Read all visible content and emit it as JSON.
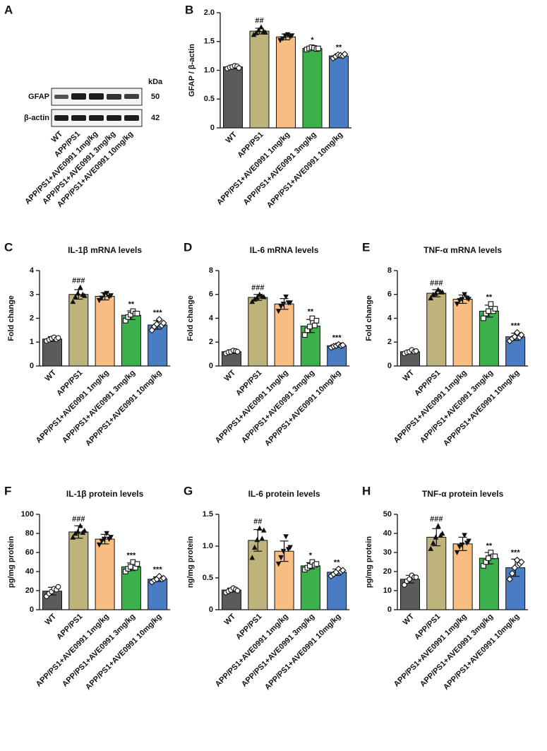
{
  "figure_a": {
    "panel": "A",
    "unit": "kDa",
    "bands": [
      {
        "name": "GFAP",
        "kda": 50
      },
      {
        "name": "β-actin",
        "kda": 42
      }
    ],
    "lanes": [
      "WT",
      "APP/PS1",
      "APP/PS1+AVE0991 1mg/kg",
      "APP/PS1+AVE0991 3mg/kg",
      "APP/PS1+AVE0991 10mg/kg"
    ]
  },
  "chart_data": [
    {
      "type": "bar",
      "panel": "B",
      "ylabel": "GFAP / β-actin",
      "categories": [
        "WT",
        "APP/PS1",
        "APP/PS1+AVE0991 1mg/kg",
        "APP/PS1+AVE0991 3mg/kg",
        "APP/PS1+AVE0991 10mg/kg"
      ],
      "colors": [
        "#5b5b5b",
        "#bfb37c",
        "#f8bd80",
        "#3cb04a",
        "#4a7cc3"
      ],
      "values": [
        1.06,
        1.68,
        1.58,
        1.38,
        1.25
      ],
      "errors": [
        0.03,
        0.05,
        0.05,
        0.03,
        0.03
      ],
      "annotations": [
        null,
        "##",
        null,
        "*",
        "**"
      ],
      "points": [
        [
          1.03,
          1.05,
          1.06,
          1.08,
          1.07,
          1.04
        ],
        [
          1.62,
          1.65,
          1.7,
          1.75,
          1.68,
          1.66
        ],
        [
          1.52,
          1.55,
          1.6,
          1.62,
          1.58,
          1.6
        ],
        [
          1.36,
          1.38,
          1.4,
          1.39,
          1.37,
          1.38
        ],
        [
          1.21,
          1.24,
          1.27,
          1.26,
          1.25,
          1.28
        ]
      ],
      "ylim": [
        0,
        2
      ],
      "yticks": [
        0,
        0.5,
        {
          "value": 1,
          "label": "1.0"
        },
        1.5,
        {
          "value": 2,
          "label": "2.0"
        }
      ]
    },
    {
      "type": "bar",
      "panel": "C",
      "title": "IL-1β mRNA levels",
      "ylabel": "Fold change",
      "categories": [
        "WT",
        "APP/PS1",
        "APP/PS1+AVE0991 1mg/kg",
        "APP/PS1+AVE0991 3mg/kg",
        "APP/PS1+AVE0991 10mg/kg"
      ],
      "colors": [
        "#5b5b5b",
        "#bfb37c",
        "#f8bd80",
        "#3cb04a",
        "#4a7cc3"
      ],
      "values": [
        1.13,
        3.0,
        2.92,
        2.13,
        1.72
      ],
      "errors": [
        0.1,
        0.2,
        0.15,
        0.18,
        0.18
      ],
      "annotations": [
        null,
        "###",
        null,
        "**",
        "***"
      ],
      "points": [
        [
          1.05,
          1.1,
          1.15,
          1.2,
          1.12,
          1.18
        ],
        [
          2.7,
          2.9,
          3.05,
          3.3,
          3.0,
          2.95
        ],
        [
          2.75,
          2.85,
          3.0,
          3.05,
          2.9,
          2.95
        ],
        [
          1.9,
          2.05,
          2.15,
          2.3,
          2.2,
          2.2
        ],
        [
          1.5,
          1.65,
          1.75,
          1.95,
          1.7,
          1.8
        ]
      ],
      "ylim": [
        0,
        4
      ],
      "yticks": [
        0,
        1,
        2,
        3,
        4
      ]
    },
    {
      "type": "bar",
      "panel": "D",
      "title": "IL-6 mRNA levels",
      "ylabel": "Fold change",
      "categories": [
        "WT",
        "APP/PS1",
        "APP/PS1+AVE0991 1mg/kg",
        "APP/PS1+AVE0991 3mg/kg",
        "APP/PS1+AVE0991 10mg/kg"
      ],
      "colors": [
        "#5b5b5b",
        "#bfb37c",
        "#f8bd80",
        "#3cb04a",
        "#4a7cc3"
      ],
      "values": [
        1.2,
        5.75,
        5.2,
        3.35,
        1.7
      ],
      "errors": [
        0.15,
        0.25,
        0.45,
        0.55,
        0.1
      ],
      "annotations": [
        null,
        "###",
        null,
        "**",
        "***"
      ],
      "points": [
        [
          1.05,
          1.15,
          1.2,
          1.3,
          1.25,
          1.2
        ],
        [
          5.4,
          5.6,
          5.75,
          6.0,
          5.85,
          5.8
        ],
        [
          4.6,
          5.0,
          5.2,
          5.8,
          5.3,
          5.3
        ],
        [
          2.6,
          3.0,
          3.3,
          4.0,
          3.4,
          3.8
        ],
        [
          1.55,
          1.65,
          1.7,
          1.8,
          1.7,
          1.75
        ]
      ],
      "ylim": [
        0,
        8
      ],
      "yticks": [
        0,
        2,
        4,
        6,
        8
      ]
    },
    {
      "type": "bar",
      "panel": "E",
      "title": "TNF-α mRNA levels",
      "ylabel": "Fold change",
      "categories": [
        "WT",
        "APP/PS1",
        "APP/PS1+AVE0991 1mg/kg",
        "APP/PS1+AVE0991 3mg/kg",
        "APP/PS1+AVE0991 10mg/kg"
      ],
      "colors": [
        "#5b5b5b",
        "#bfb37c",
        "#f8bd80",
        "#3cb04a",
        "#4a7cc3"
      ],
      "values": [
        1.2,
        6.1,
        5.6,
        4.6,
        2.45
      ],
      "errors": [
        0.12,
        0.3,
        0.35,
        0.5,
        0.3
      ],
      "annotations": [
        null,
        "###",
        null,
        "**",
        "***"
      ],
      "points": [
        [
          1.05,
          1.15,
          1.2,
          1.35,
          1.2,
          1.25
        ],
        [
          5.7,
          6.0,
          6.1,
          6.4,
          6.2,
          6.2
        ],
        [
          5.2,
          5.5,
          5.6,
          6.0,
          5.7,
          5.6
        ],
        [
          4.0,
          4.4,
          4.6,
          5.2,
          4.6,
          4.8
        ],
        [
          2.1,
          2.3,
          2.45,
          2.8,
          2.4,
          2.6
        ]
      ],
      "ylim": [
        0,
        8
      ],
      "yticks": [
        0,
        2,
        4,
        6,
        8
      ]
    },
    {
      "type": "bar",
      "panel": "F",
      "title": "IL-1β protein levels",
      "ylabel": "pg/mg protein",
      "categories": [
        "WT",
        "APP/PS1",
        "APP/PS1+AVE0991 1mg/kg",
        "APP/PS1+AVE0991 3mg/kg",
        "APP/PS1+AVE0991 10mg/kg"
      ],
      "colors": [
        "#5b5b5b",
        "#bfb37c",
        "#f8bd80",
        "#3cb04a",
        "#4a7cc3"
      ],
      "values": [
        19.5,
        81.5,
        74,
        45,
        32
      ],
      "errors": [
        4,
        6.5,
        5,
        4,
        2.5
      ],
      "annotations": [
        null,
        "###",
        null,
        "***",
        "***"
      ],
      "points": [
        [
          14,
          17,
          19,
          22,
          21,
          24
        ],
        [
          76,
          80,
          82,
          88,
          81,
          83
        ],
        [
          68,
          72,
          74,
          80,
          74,
          76
        ],
        [
          40,
          43,
          45,
          50,
          44,
          48
        ],
        [
          29,
          31,
          32,
          35,
          32,
          33
        ]
      ],
      "ylim": [
        0,
        100
      ],
      "yticks": [
        0,
        20,
        40,
        60,
        80,
        100
      ]
    },
    {
      "type": "bar",
      "panel": "G",
      "title": "IL-6 protein levels",
      "ylabel": "ng/mg protein",
      "categories": [
        "WT",
        "APP/PS1",
        "APP/PS1+AVE0991 1mg/kg",
        "APP/PS1+AVE0991 3mg/kg",
        "APP/PS1+AVE0991 10mg/kg"
      ],
      "colors": [
        "#5b5b5b",
        "#bfb37c",
        "#f8bd80",
        "#3cb04a",
        "#4a7cc3"
      ],
      "values": [
        0.31,
        1.09,
        0.92,
        0.69,
        0.59
      ],
      "errors": [
        0.03,
        0.17,
        0.16,
        0.05,
        0.05
      ],
      "annotations": [
        null,
        "##",
        null,
        "*",
        "**"
      ],
      "points": [
        [
          0.27,
          0.29,
          0.31,
          0.34,
          0.32,
          0.3
        ],
        [
          0.82,
          0.98,
          1.1,
          1.28,
          1.12,
          1.25
        ],
        [
          0.72,
          0.82,
          0.92,
          1.15,
          0.95,
          0.98
        ],
        [
          0.63,
          0.66,
          0.69,
          0.75,
          0.7,
          0.72
        ],
        [
          0.53,
          0.56,
          0.59,
          0.64,
          0.6,
          0.62
        ]
      ],
      "ylim": [
        0,
        1.5
      ],
      "yticks": [
        0,
        0.5,
        {
          "value": 1,
          "label": "1.0"
        },
        1.5
      ]
    },
    {
      "type": "bar",
      "panel": "H",
      "title": "TNF-α protein levels",
      "ylabel": "pg/mg protein",
      "categories": [
        "WT",
        "APP/PS1",
        "APP/PS1+AVE0991 1mg/kg",
        "APP/PS1+AVE0991 3mg/kg",
        "APP/PS1+AVE0991 10mg/kg"
      ],
      "colors": [
        "#5b5b5b",
        "#bfb37c",
        "#f8bd80",
        "#3cb04a",
        "#4a7cc3"
      ],
      "values": [
        16,
        38,
        34.5,
        27,
        22
      ],
      "errors": [
        2,
        4.5,
        3.5,
        3,
        4.5
      ],
      "annotations": [
        null,
        "###",
        null,
        "**",
        "***"
      ],
      "points": [
        [
          13,
          15,
          16,
          18,
          17,
          17
        ],
        [
          32,
          35,
          38,
          44,
          39,
          40
        ],
        [
          30,
          33,
          34,
          39,
          35,
          36
        ],
        [
          23,
          25,
          27,
          30,
          28,
          28
        ],
        [
          16,
          19,
          22,
          26,
          24,
          25
        ]
      ],
      "ylim": [
        0,
        50
      ],
      "yticks": [
        0,
        10,
        20,
        30,
        40,
        50
      ]
    }
  ]
}
